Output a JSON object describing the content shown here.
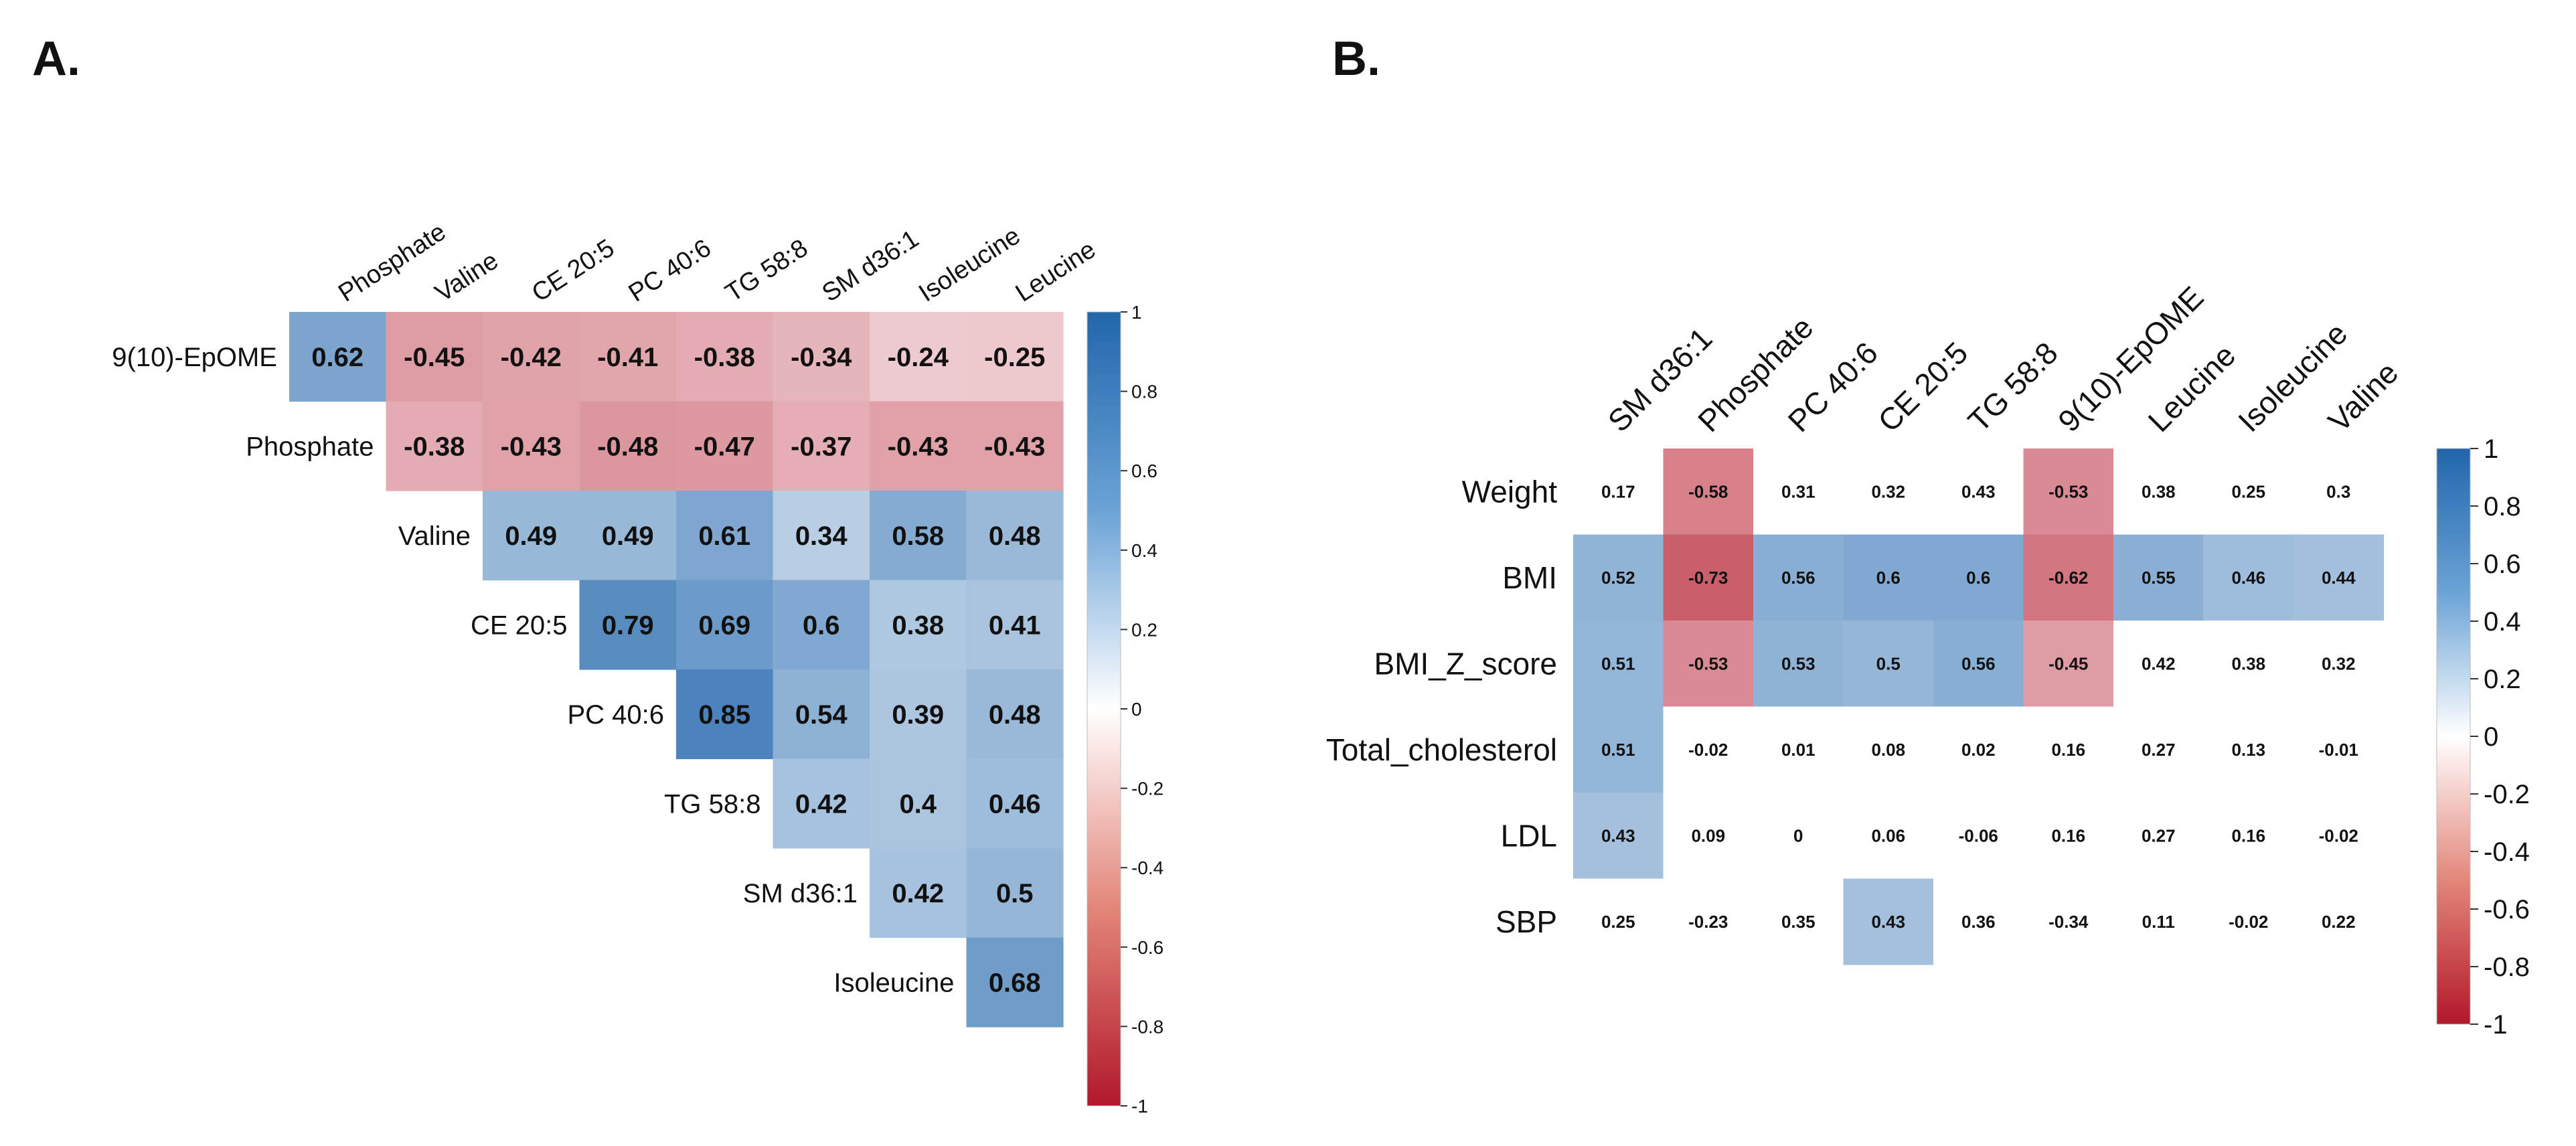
{
  "chart_data": [
    {
      "type": "heatmap",
      "panel_label": "A.",
      "layout": "upper-triangle",
      "columns": [
        "Phosphate",
        "Valine",
        "CE 20:5",
        "PC 40:6",
        "TG 58:8",
        "SM d36:1",
        "Isoleucine",
        "Leucine"
      ],
      "rows": [
        "9(10)-EpOME",
        "Phosphate",
        "Valine",
        "CE 20:5",
        "PC 40:6",
        "TG 58:8",
        "SM d36:1",
        "Isoleucine"
      ],
      "values": [
        [
          0.62,
          -0.45,
          -0.42,
          -0.41,
          -0.38,
          -0.34,
          -0.24,
          -0.25
        ],
        [
          null,
          -0.38,
          -0.43,
          -0.48,
          -0.47,
          -0.37,
          -0.43,
          -0.43
        ],
        [
          null,
          null,
          0.49,
          0.49,
          0.61,
          0.34,
          0.58,
          0.48
        ],
        [
          null,
          null,
          null,
          0.79,
          0.69,
          0.6,
          0.38,
          0.41
        ],
        [
          null,
          null,
          null,
          null,
          0.85,
          0.54,
          0.39,
          0.48
        ],
        [
          null,
          null,
          null,
          null,
          null,
          0.42,
          0.4,
          0.46
        ],
        [
          null,
          null,
          null,
          null,
          null,
          null,
          0.42,
          0.5
        ],
        [
          null,
          null,
          null,
          null,
          null,
          null,
          null,
          0.68
        ]
      ],
      "labels": [
        [
          "0.62",
          "-0.45",
          "-0.42",
          "-0.41",
          "-0.38",
          "-0.34",
          "-0.24",
          "-0.25"
        ],
        [
          null,
          "-0.38",
          "-0.43",
          "-0.48",
          "-0.47",
          "-0.37",
          "-0.43",
          "-0.43"
        ],
        [
          null,
          null,
          "0.49",
          "0.49",
          "0.61",
          "0.34",
          "0.58",
          "0.48"
        ],
        [
          null,
          null,
          null,
          "0.79",
          "0.69",
          "0.6",
          "0.38",
          "0.41"
        ],
        [
          null,
          null,
          null,
          null,
          "0.85",
          "0.54",
          "0.39",
          "0.48"
        ],
        [
          null,
          null,
          null,
          null,
          null,
          "0.42",
          "0.4",
          "0.46"
        ],
        [
          null,
          null,
          null,
          null,
          null,
          null,
          "0.42",
          "0.5"
        ],
        [
          null,
          null,
          null,
          null,
          null,
          null,
          null,
          "0.68"
        ]
      ],
      "colorbar": {
        "range": [
          -1,
          1
        ],
        "ticks": [
          1,
          0.8,
          0.6,
          0.4,
          0.2,
          0,
          -0.2,
          -0.4,
          -0.6,
          -0.8,
          -1
        ],
        "tick_labels": [
          "1",
          "0.8",
          "0.6",
          "0.4",
          "0.2",
          "0",
          "-0.2",
          "-0.4",
          "-0.6",
          "-0.8",
          "-1"
        ]
      },
      "colors": {
        "positive": "#2166ac",
        "neutral": "#ffffff",
        "negative": "#b2182b"
      }
    },
    {
      "type": "heatmap",
      "panel_label": "B.",
      "layout": "full",
      "columns": [
        "SM d36:1",
        "Phosphate",
        "PC 40:6",
        "CE 20:5",
        "TG 58:8",
        "9(10)-EpOME",
        "Leucine",
        "Isoleucine",
        "Valine"
      ],
      "rows": [
        "Weight",
        "BMI",
        "BMI_Z_score",
        "Total_cholesterol",
        "LDL",
        "SBP"
      ],
      "values": [
        [
          0.17,
          -0.58,
          0.31,
          0.32,
          0.43,
          -0.53,
          0.38,
          0.25,
          0.3
        ],
        [
          0.52,
          -0.73,
          0.56,
          0.6,
          0.6,
          -0.62,
          0.55,
          0.46,
          0.44
        ],
        [
          0.51,
          -0.53,
          0.53,
          0.5,
          0.56,
          -0.45,
          0.42,
          0.38,
          0.32
        ],
        [
          0.51,
          -0.02,
          0.01,
          0.08,
          0.02,
          0.16,
          0.27,
          0.13,
          -0.01
        ],
        [
          0.43,
          0.09,
          0,
          0.06,
          -0.06,
          0.16,
          0.27,
          0.16,
          -0.02
        ],
        [
          0.25,
          -0.23,
          0.35,
          0.43,
          0.36,
          -0.34,
          0.11,
          -0.02,
          0.22
        ]
      ],
      "labels": [
        [
          "0.17",
          "-0.58",
          "0.31",
          "0.32",
          "0.43",
          "-0.53",
          "0.38",
          "0.25",
          "0.3"
        ],
        [
          "0.52",
          "-0.73",
          "0.56",
          "0.6",
          "0.6",
          "-0.62",
          "0.55",
          "0.46",
          "0.44"
        ],
        [
          "0.51",
          "-0.53",
          "0.53",
          "0.5",
          "0.56",
          "-0.45",
          "0.42",
          "0.38",
          "0.32"
        ],
        [
          "0.51",
          "-0.02",
          "0.01",
          "0.08",
          "0.02",
          "0.16",
          "0.27",
          "0.13",
          "-0.01"
        ],
        [
          "0.43",
          "0.09",
          "0",
          "0.06",
          "-0.06",
          "0.16",
          "0.27",
          "0.16",
          "-0.02"
        ],
        [
          "0.25",
          "-0.23",
          "0.35",
          "0.43",
          "0.36",
          "-0.34",
          "0.11",
          "-0.02",
          "0.22"
        ]
      ],
      "significant": [
        [
          false,
          true,
          false,
          false,
          false,
          true,
          false,
          false,
          false
        ],
        [
          true,
          true,
          true,
          true,
          true,
          true,
          true,
          true,
          true
        ],
        [
          true,
          true,
          true,
          true,
          true,
          true,
          false,
          false,
          false
        ],
        [
          true,
          false,
          false,
          false,
          false,
          false,
          false,
          false,
          false
        ],
        [
          true,
          false,
          false,
          false,
          false,
          false,
          false,
          false,
          false
        ],
        [
          false,
          false,
          false,
          true,
          false,
          false,
          false,
          false,
          false
        ]
      ],
      "colorbar": {
        "range": [
          -1,
          1
        ],
        "ticks": [
          1,
          0.8,
          0.6,
          0.4,
          0.2,
          0,
          -0.2,
          -0.4,
          -0.6,
          -0.8,
          -1
        ],
        "tick_labels": [
          "1",
          "0.8",
          "0.6",
          "0.4",
          "0.2",
          "0",
          "-0.2",
          "-0.4",
          "-0.6",
          "-0.8",
          "-1"
        ]
      },
      "colors": {
        "positive": "#2166ac",
        "neutral": "#ffffff",
        "negative": "#b2182b"
      }
    }
  ]
}
